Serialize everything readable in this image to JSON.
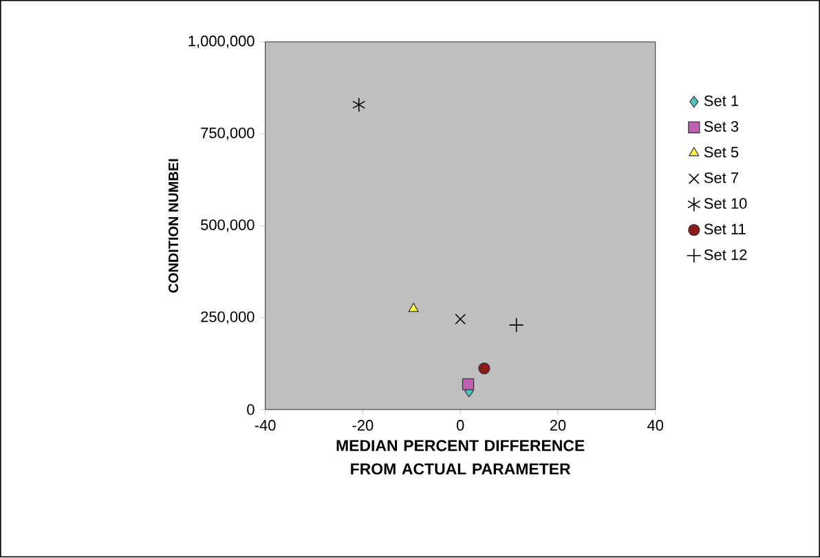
{
  "chart_data": {
    "type": "scatter",
    "xlabel": "MEDIAN PERCENT DIFFERENCE FROM ACTUAL PARAMETER",
    "ylabel": "CONDITION NUMBEI",
    "xlim": [
      -40,
      40
    ],
    "xticks": [
      -40,
      -20,
      0,
      20,
      40
    ],
    "ylim": [
      0,
      1000000
    ],
    "yticks": [
      {
        "value": 0,
        "label": "0"
      },
      {
        "value": 250000,
        "label": "250,000"
      },
      {
        "value": 500000,
        "label": "500,000"
      },
      {
        "value": 750000,
        "label": "750,000"
      },
      {
        "value": 1000000,
        "label": "1,000,000"
      }
    ],
    "grid": false,
    "legend": "right",
    "series": [
      {
        "name": "Set 1",
        "color": "#4fc4c4",
        "marker": "diamond",
        "x": [
          1.8
        ],
        "values": [
          50000
        ]
      },
      {
        "name": "Set 3",
        "color": "#c060b0",
        "marker": "square",
        "x": [
          1.6
        ],
        "values": [
          69000
        ]
      },
      {
        "name": "Set 5",
        "color": "#ffff40",
        "marker": "triangle",
        "x": [
          -9.6
        ],
        "values": [
          274000
        ]
      },
      {
        "name": "Set 7",
        "color": "#000000",
        "marker": "x",
        "x": [
          0
        ],
        "values": [
          246000
        ]
      },
      {
        "name": "Set 10",
        "color": "#000000",
        "marker": "cross",
        "x": [
          -20.8
        ],
        "values": [
          829000
        ]
      },
      {
        "name": "Set 11",
        "color": "#8b1a1a",
        "marker": "circle",
        "x": [
          4.9
        ],
        "values": [
          112000
        ]
      },
      {
        "name": "Set 12",
        "color": "#000000",
        "marker": "plus",
        "x": [
          11.5
        ],
        "values": [
          230000
        ]
      }
    ]
  }
}
